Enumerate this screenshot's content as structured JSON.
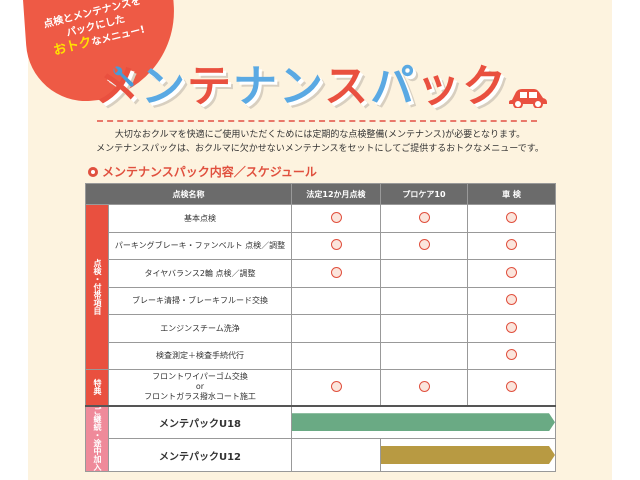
{
  "banner": {
    "bubble_line1": "点検とメンテナンスを",
    "bubble_line2": "パックにした",
    "bubble_highlight": "おトク",
    "bubble_line3": "なメニュー!",
    "title_parts": [
      "メ",
      "ン",
      "テ",
      "ナ",
      "ン",
      "ス",
      "パ",
      "ッ",
      "ク"
    ],
    "icons": [
      "wrench-icon",
      "car-icon"
    ]
  },
  "intro": {
    "line1": "大切なおクルマを快適にご使用いただくためには定期的な点検整備(メンテナンス)が必要となります。",
    "line2": "メンテナンスパックは、おクルマに欠かせないメンテナンスをセットにしてご提供するおトクなメニューです。"
  },
  "section_title": "メンテナンスパック内容／スケジュール",
  "table": {
    "headers": [
      "点検名称",
      "法定12か月点検",
      "プロケア10",
      "車 検"
    ],
    "groups": {
      "inspection": "点検・付帯項目",
      "bonus": "特典",
      "continue": "ご継続・途中加入"
    },
    "rows": [
      {
        "name": "基本点検",
        "marks": [
          true,
          true,
          true
        ]
      },
      {
        "name": "パーキングブレーキ・ファンベルト 点検／調整",
        "marks": [
          true,
          true,
          true
        ]
      },
      {
        "name": "タイヤバランス2輪 点検／調整",
        "marks": [
          true,
          false,
          true
        ]
      },
      {
        "name": "ブレーキ清掃・ブレーキフルード交換",
        "marks": [
          false,
          false,
          true
        ]
      },
      {
        "name": "エンジンスチーム洗浄",
        "marks": [
          false,
          false,
          true
        ]
      },
      {
        "name": "検査測定＋検査手続代行",
        "marks": [
          false,
          false,
          true
        ]
      }
    ],
    "bonus_row": {
      "line1": "フロントワイパーゴム交換",
      "line2": "or",
      "line3": "フロントガラス撥水コート施工",
      "marks": [
        true,
        true,
        true
      ]
    },
    "packs": [
      {
        "name": "メンテパックU18",
        "start_column": 1,
        "color": "#6aaa84"
      },
      {
        "name": "メンテパックU12",
        "start_column": 2,
        "color": "#b89a42"
      }
    ]
  },
  "colors": {
    "accent": "#e0503e",
    "pink": "#ef8a9a",
    "background": "#fdf3df"
  }
}
